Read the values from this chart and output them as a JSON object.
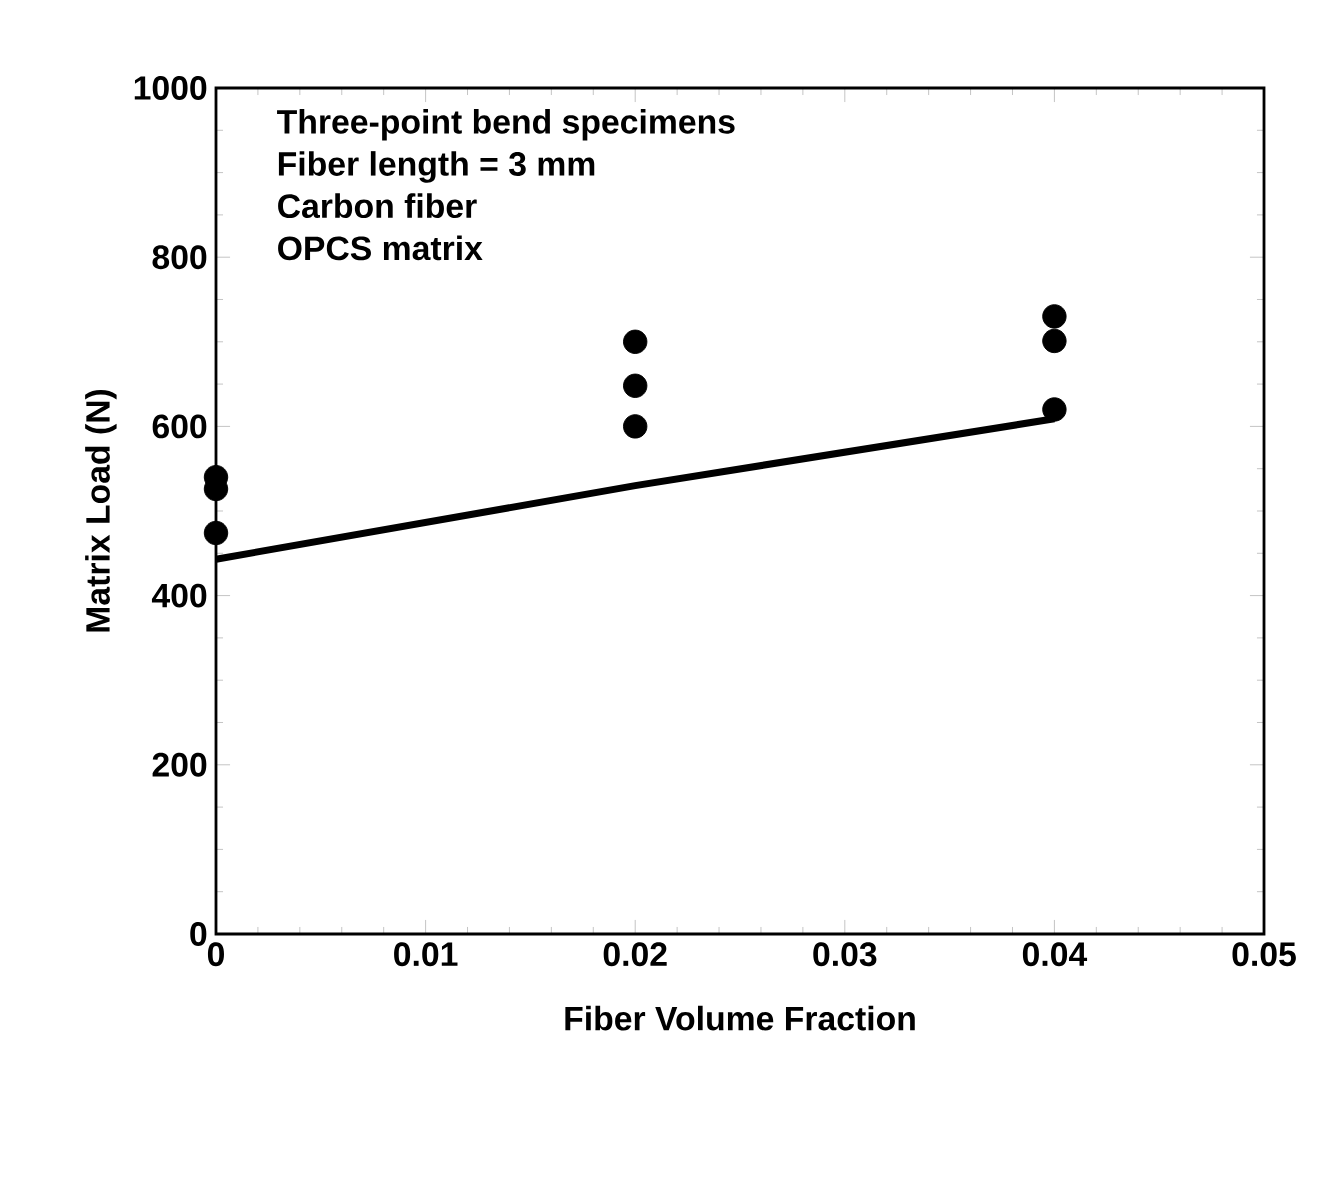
{
  "chart_data": {
    "type": "scatter",
    "xlabel": "Fiber Volume Fraction",
    "ylabel": "Matrix Load (N)",
    "annotations": [
      "Three-point bend specimens",
      "Fiber length = 3 mm",
      "Carbon fiber",
      "OPCS matrix"
    ],
    "series": [
      {
        "color": "#000000",
        "marker": "circle",
        "x": [
          0,
          0,
          0,
          0.02,
          0.02,
          0.02,
          0.04,
          0.04,
          0.04
        ],
        "values": [
          540,
          526,
          474,
          700,
          648,
          600,
          730,
          701,
          620
        ]
      },
      {
        "type": "line",
        "color": "#000000",
        "marker": "none",
        "line_style": "solid",
        "x": [
          0,
          0.02,
          0.04
        ],
        "values": [
          443,
          530,
          609
        ]
      }
    ],
    "xlim": [
      0,
      0.05
    ],
    "ylim": [
      0,
      1000
    ],
    "xticks": [
      0,
      0.01,
      0.02,
      0.03,
      0.04,
      0.05
    ],
    "yticks": [
      0,
      200,
      400,
      600,
      800,
      1000
    ],
    "grid": false
  }
}
